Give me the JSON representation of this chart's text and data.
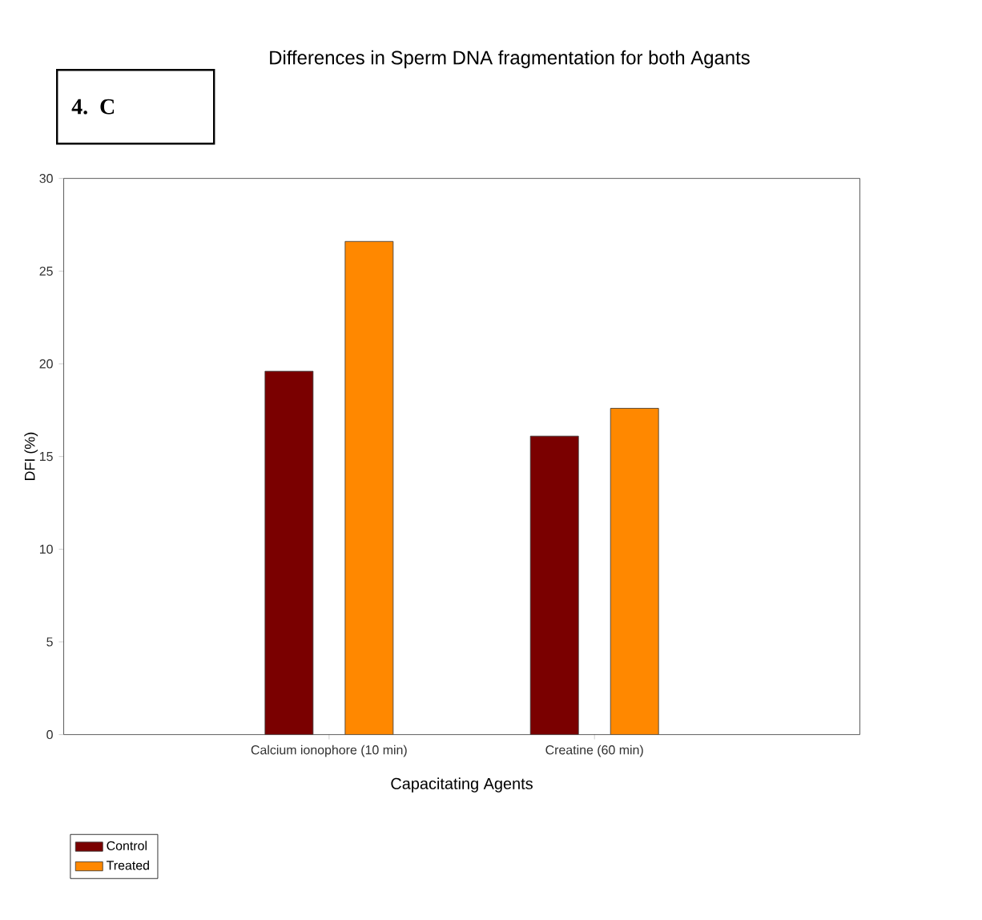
{
  "chart_data": {
    "type": "bar",
    "title": "Differences in Sperm DNA fragmentation for both Agants",
    "annotations": [
      "4. C"
    ],
    "xlabel": "Capacitating Agents",
    "ylabel": "DFI (%)",
    "categories": [
      "Calcium ionophore (10 min)",
      "Creatine (60 min)"
    ],
    "series": [
      {
        "name": "Control",
        "color": "#7a0000",
        "values": [
          19.6,
          16.1
        ]
      },
      {
        "name": "Treated",
        "color": "#ff8800",
        "values": [
          26.6,
          17.6
        ]
      }
    ],
    "ylim": [
      0,
      30
    ],
    "yticks": [
      0,
      5,
      10,
      15,
      20,
      25,
      30
    ],
    "legend": "bottom left"
  }
}
